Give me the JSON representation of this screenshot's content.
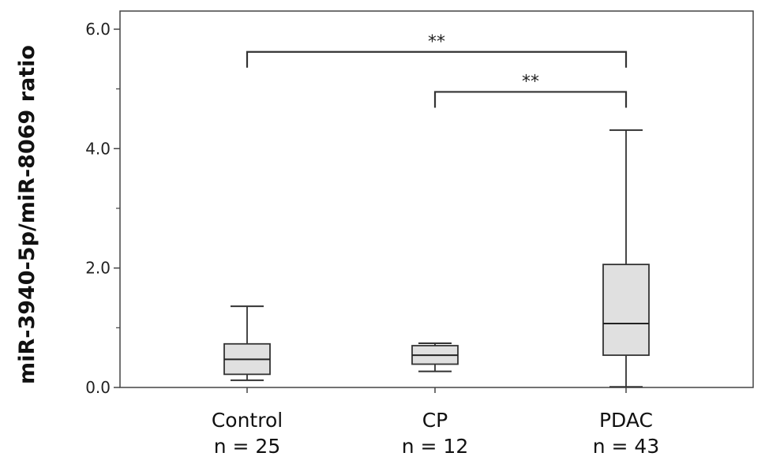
{
  "chart_data": {
    "type": "boxplot",
    "ylabel": "miR-3940-5p/miR-8069 ratio",
    "ylim": [
      0,
      6.3
    ],
    "y_ticks": [
      0.0,
      2.0,
      4.0,
      6.0
    ],
    "y_tick_labels": [
      "0.0",
      "2.0",
      "4.0",
      "6.0"
    ],
    "y_minor_ticks": [
      1.0,
      3.0,
      5.0
    ],
    "box_color": "#e0e0e0",
    "groups": [
      {
        "name": "Control",
        "n_label": "n = 25",
        "min": 0.12,
        "q1": 0.22,
        "median": 0.47,
        "q3": 0.73,
        "max": 1.36
      },
      {
        "name": "CP",
        "n_label": "n = 12",
        "min": 0.27,
        "q1": 0.39,
        "median": 0.54,
        "q3": 0.7,
        "max": 0.74
      },
      {
        "name": "PDAC",
        "n_label": "n = 43",
        "min": 0.01,
        "q1": 0.54,
        "median": 1.07,
        "q3": 2.06,
        "max": 4.31
      }
    ],
    "significance": [
      {
        "from": "Control",
        "to": "PDAC",
        "label": "**",
        "y": 5.62
      },
      {
        "from": "CP",
        "to": "PDAC",
        "label": "**",
        "y": 4.95
      }
    ]
  }
}
